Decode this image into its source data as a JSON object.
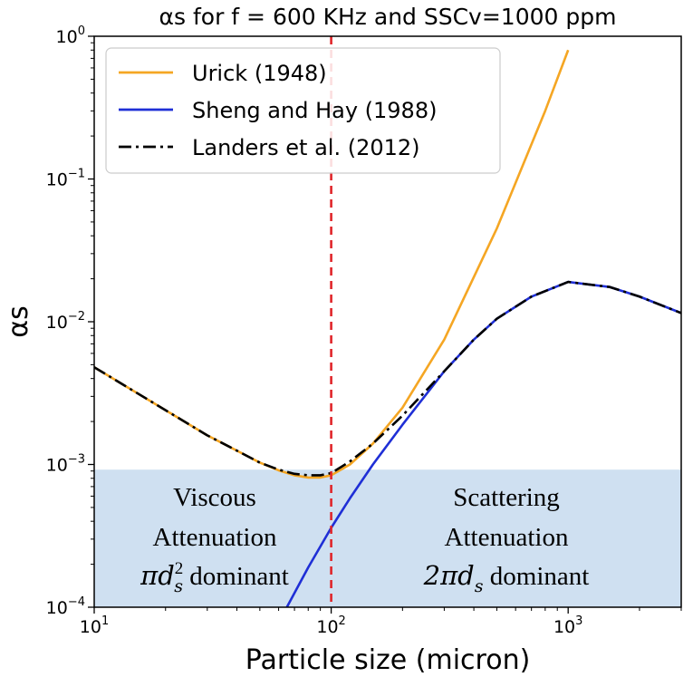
{
  "chart_data": {
    "type": "line",
    "title": "αs for f = 600 KHz and SSCv=1000 ppm",
    "xlabel": "Particle size (micron)",
    "ylabel": "αs",
    "xscale": "log",
    "yscale": "log",
    "xlim": [
      10,
      3000
    ],
    "ylim": [
      0.0001,
      1
    ],
    "x_ticks": [
      {
        "base": "10",
        "exp": "1",
        "value": 10
      },
      {
        "base": "10",
        "exp": "2",
        "value": 100
      },
      {
        "base": "10",
        "exp": "3",
        "value": 1000
      }
    ],
    "y_ticks": [
      {
        "base": "10",
        "exp": "−4",
        "value": 0.0001
      },
      {
        "base": "10",
        "exp": "−3",
        "value": 0.001
      },
      {
        "base": "10",
        "exp": "−2",
        "value": 0.01
      },
      {
        "base": "10",
        "exp": "−1",
        "value": 0.1
      },
      {
        "base": "10",
        "exp": "0",
        "value": 1
      }
    ],
    "grid": false,
    "legend_position": "top-left",
    "series": [
      {
        "name": "Urick (1948)",
        "color": "#f5a623",
        "style": "solid",
        "x": [
          10,
          15,
          20,
          30,
          40,
          50,
          60,
          70,
          80,
          90,
          100,
          120,
          150,
          200,
          300,
          500,
          800,
          1000
        ],
        "y": [
          0.0048,
          0.0032,
          0.0024,
          0.0016,
          0.00125,
          0.00103,
          0.00091,
          0.00084,
          0.00081,
          0.00081,
          0.00084,
          0.001,
          0.0014,
          0.0025,
          0.0075,
          0.045,
          0.3,
          0.8
        ]
      },
      {
        "name": "Sheng and Hay (1988)",
        "color": "#1f2fd6",
        "style": "solid",
        "x": [
          65,
          80,
          100,
          120,
          150,
          200,
          300,
          400,
          500,
          700,
          1000,
          1500,
          2000,
          3000
        ],
        "y": [
          0.0001,
          0.00019,
          0.00036,
          0.00058,
          0.001,
          0.0019,
          0.0045,
          0.0075,
          0.0105,
          0.015,
          0.019,
          0.0175,
          0.015,
          0.0115
        ]
      },
      {
        "name": "Landers et al. (2012)",
        "color": "#000000",
        "style": "dashdot",
        "x": [
          10,
          15,
          20,
          30,
          40,
          50,
          60,
          70,
          80,
          90,
          100,
          120,
          150,
          200,
          300,
          400,
          500,
          700,
          1000,
          1500,
          2000,
          3000
        ],
        "y": [
          0.0048,
          0.0032,
          0.0024,
          0.0016,
          0.00125,
          0.00103,
          0.00092,
          0.00086,
          0.00084,
          0.00084,
          0.00087,
          0.00105,
          0.0014,
          0.0022,
          0.0045,
          0.0075,
          0.0105,
          0.015,
          0.019,
          0.0175,
          0.015,
          0.0115
        ]
      }
    ],
    "annotations": {
      "vline": {
        "x": 100,
        "color": "#e0252a",
        "style": "dashed"
      },
      "shaded_region": {
        "y_max": 0.00092,
        "color": "#cfe0f1"
      },
      "left_region": {
        "line1": "Viscous",
        "line2": "Attenuation",
        "formula_main": "πd",
        "formula_sup": "2",
        "formula_sub": "s",
        "formula_text": " dominant"
      },
      "right_region": {
        "line1": "Scattering",
        "line2": "Attenuation",
        "formula_main": "2πd",
        "formula_sub": "s",
        "formula_text": " dominant"
      }
    }
  }
}
